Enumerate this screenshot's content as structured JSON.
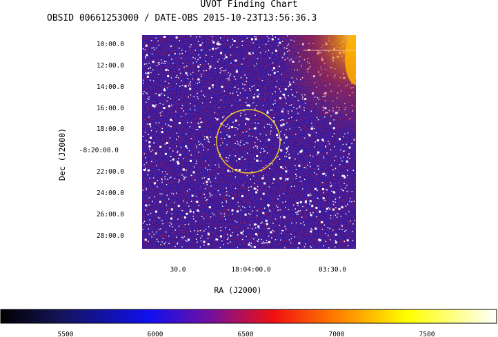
{
  "title": "UVOT Finding Chart",
  "subtitle": "OBSID 00661253000 / DATE-OBS 2015-10-23T13:56:36.3",
  "image": {
    "dec_axis_label": "Dec (J2000)",
    "ra_axis_label": "RA (J2000)",
    "dec_ticks": [
      "10:00.0",
      "12:00.0",
      "14:00.0",
      "16:00.0",
      "18:00.0",
      "-8:20:00.0",
      "22:00.0",
      "24:00.0",
      "26:00.0",
      "28:00.0"
    ],
    "ra_ticks": [
      "30.0",
      "18:04:00.0",
      "03:30.0"
    ],
    "colorbar_ticks": [
      "5500",
      "6000",
      "6500",
      "7000",
      "7500"
    ],
    "colors": {
      "background_blue": "#2a1aa8",
      "noise_red": "#c0203a",
      "noise_white": "#ffffff",
      "circle": "#f0d020",
      "glow": "#f0a000"
    }
  }
}
